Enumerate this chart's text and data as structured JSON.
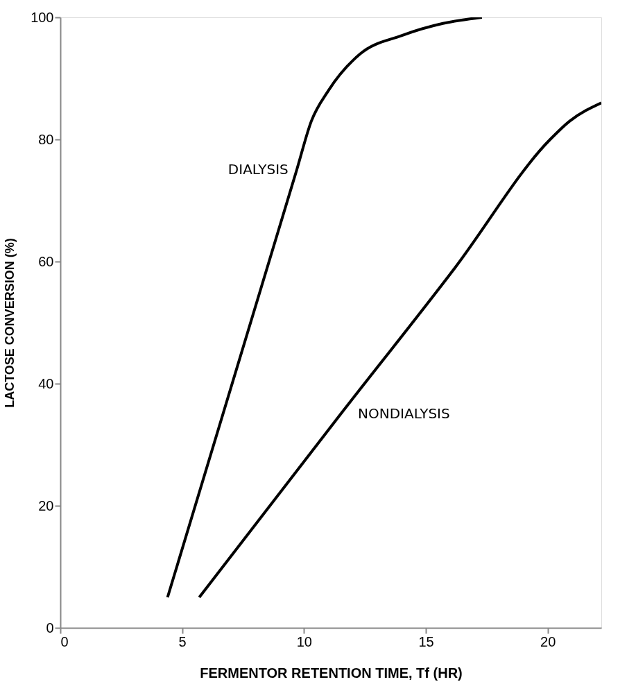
{
  "chart_data": {
    "type": "line",
    "xlabel": "FERMENTOR RETENTION TIME, Tf (HR)",
    "ylabel": "LACTOSE CONVERSION (%)",
    "xlim": [
      0,
      22.2
    ],
    "xticks": [
      0,
      5,
      10,
      15,
      20
    ],
    "ylim": [
      0,
      100
    ],
    "yticks": [
      0,
      20,
      40,
      60,
      80,
      100
    ],
    "grid": false,
    "marker": "none",
    "line_style": "solid",
    "series": [
      {
        "name": "DIALYSIS",
        "color": "#000000",
        "x": [
          4.4,
          9.7,
          10.3,
          11,
          12.3,
          14,
          15.7,
          17.3
        ],
        "values": [
          5,
          75,
          83,
          88,
          94,
          97,
          99,
          100
        ]
      },
      {
        "name": "NONDIALYSIS",
        "color": "#000000",
        "x": [
          5.7,
          11.5,
          16.2,
          20.1,
          20.9,
          22.2
        ],
        "values": [
          5,
          35,
          59,
          80,
          83,
          86
        ]
      }
    ]
  }
}
